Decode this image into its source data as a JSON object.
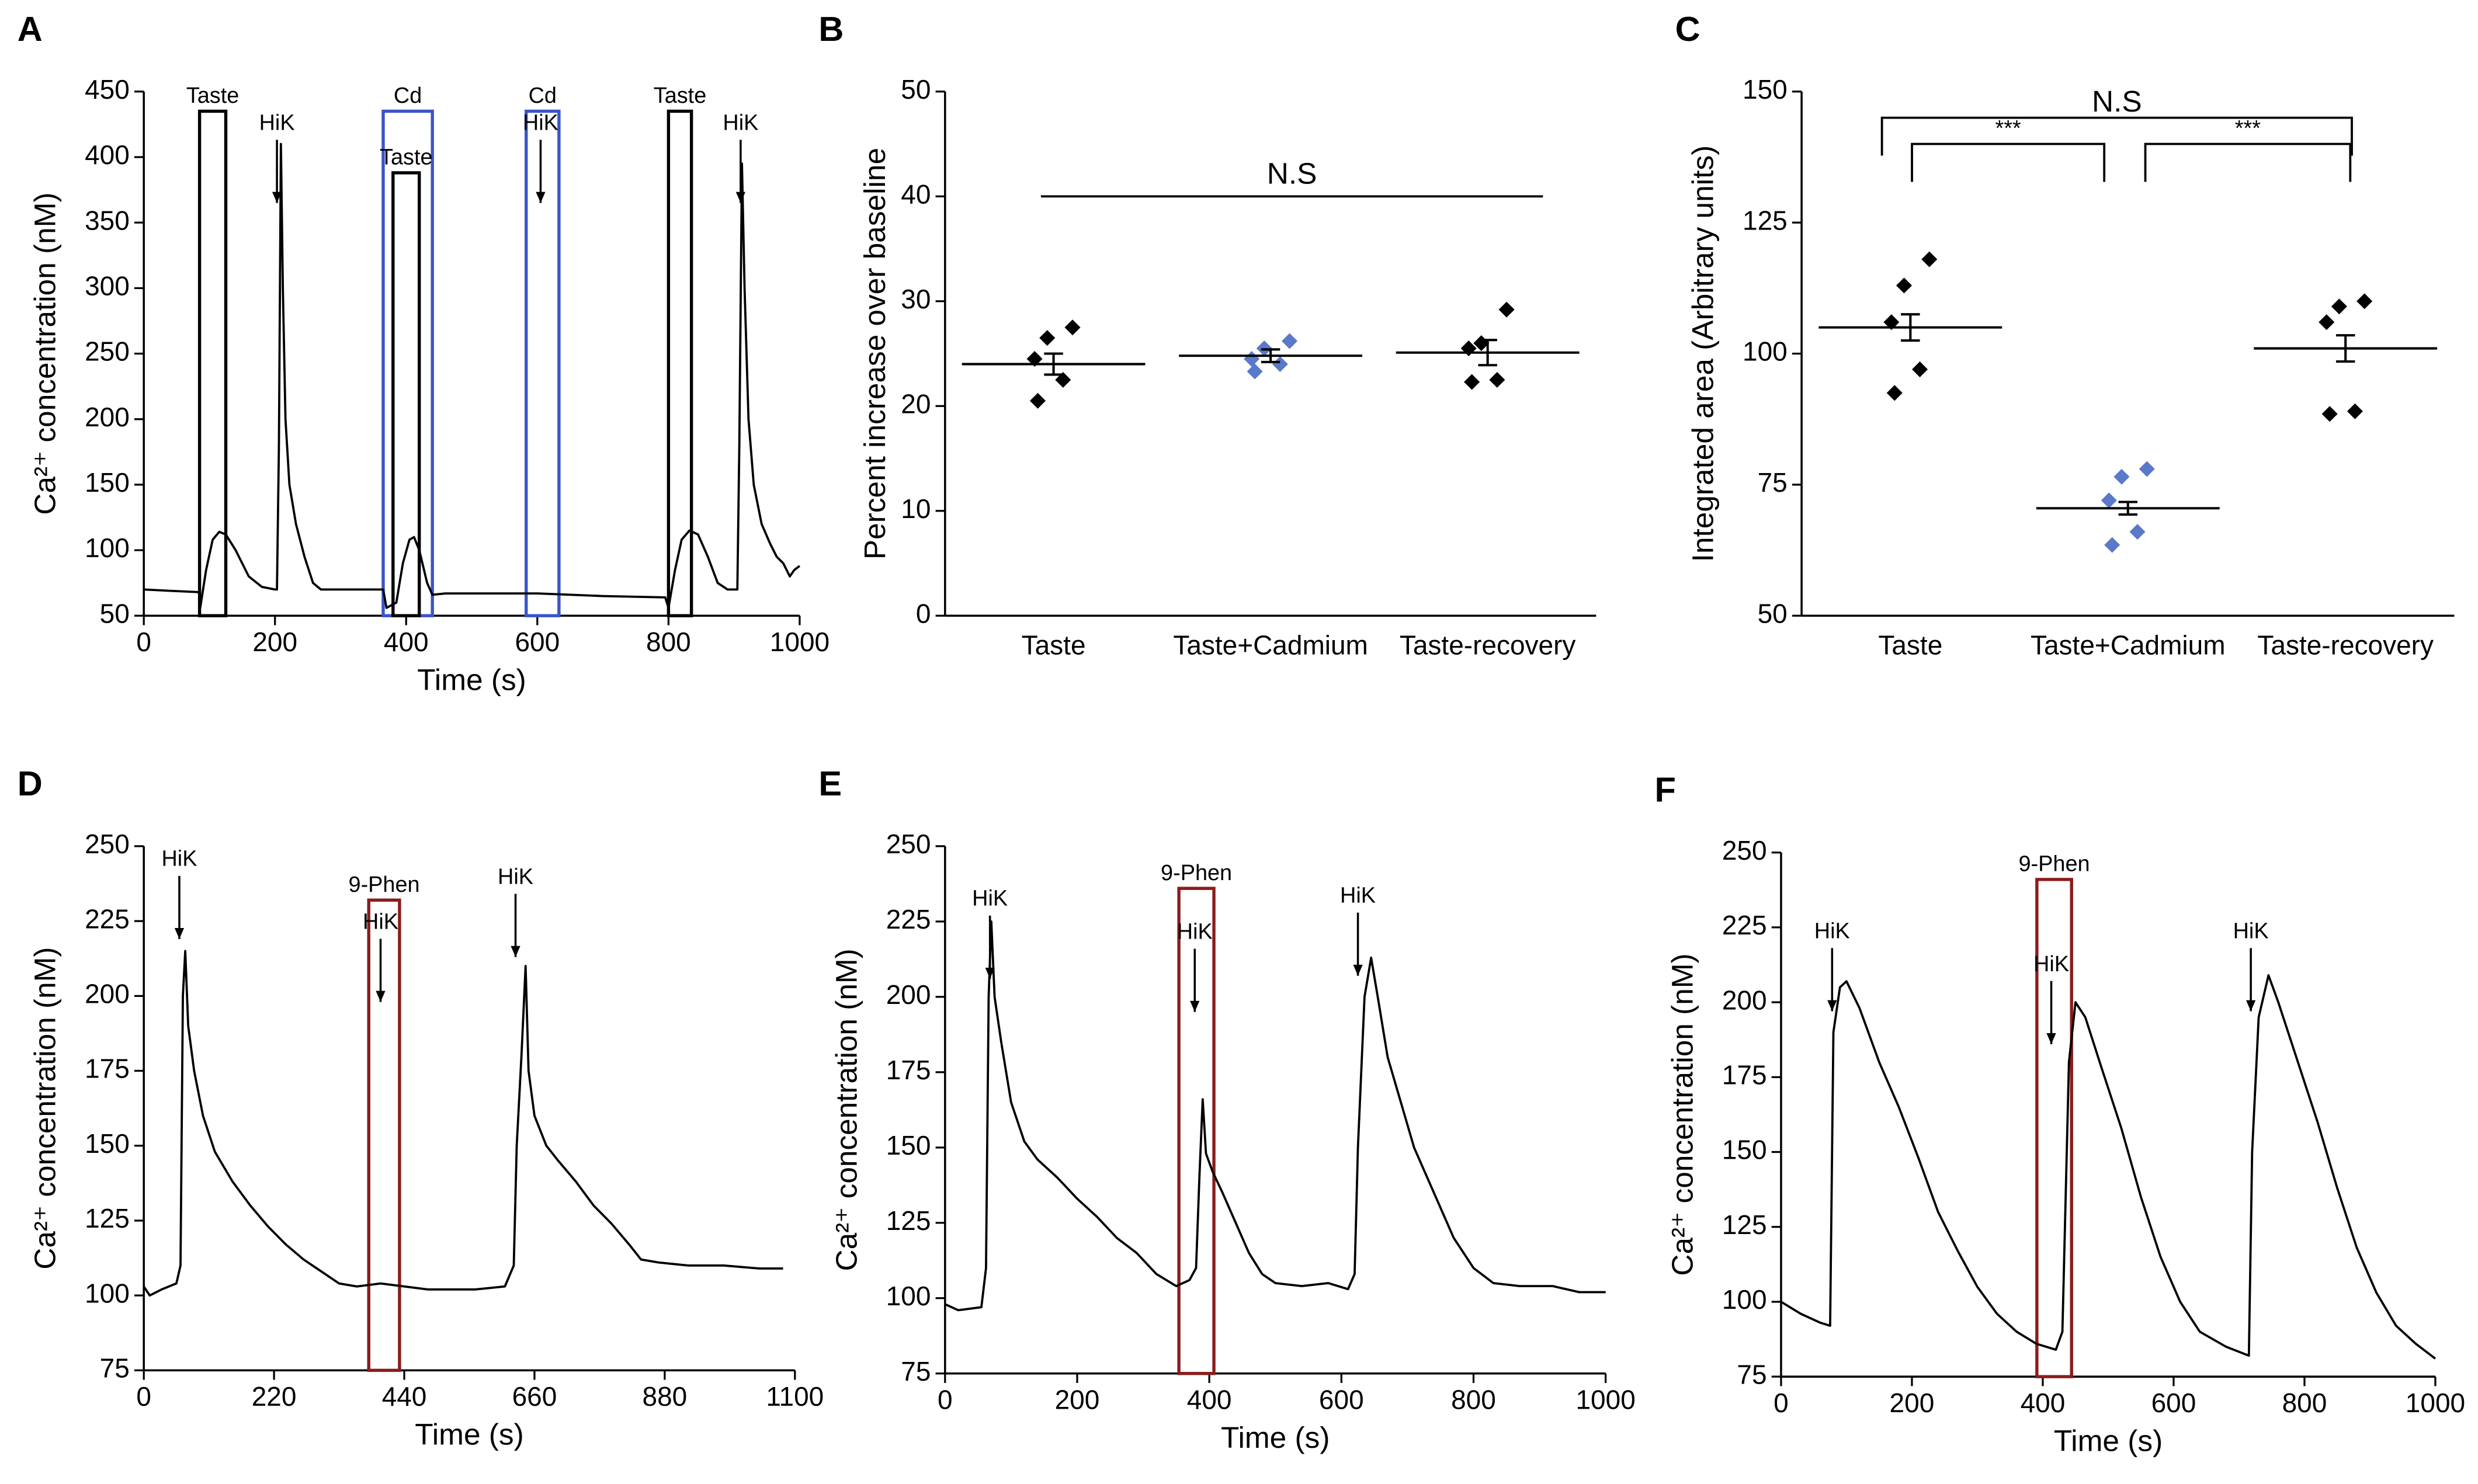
{
  "chart_data": [
    {
      "panel": "A",
      "type": "line",
      "xlabel": "Time (s)",
      "ylabel": "Ca²⁺ concentration (nM)",
      "xlim": [
        0,
        1000
      ],
      "xticks": [
        0,
        200,
        400,
        600,
        800,
        1000
      ],
      "ylim": [
        50,
        450
      ],
      "yticks": [
        50,
        100,
        150,
        200,
        250,
        300,
        350,
        400,
        450
      ],
      "color": "#000000",
      "x": [
        0,
        40,
        84,
        86,
        95,
        105,
        115,
        125,
        140,
        160,
        180,
        200,
        203,
        206,
        209,
        212,
        216,
        222,
        232,
        245,
        258,
        270,
        365,
        370,
        385,
        395,
        405,
        412,
        420,
        432,
        440,
        460,
        600,
        700,
        795,
        800,
        810,
        820,
        832,
        845,
        860,
        875,
        890,
        905,
        908,
        912,
        916,
        922,
        930,
        942,
        955,
        965,
        975,
        985,
        992,
        1000
      ],
      "values": [
        70,
        69,
        68,
        56,
        85,
        108,
        114,
        112,
        100,
        80,
        72,
        70,
        70,
        180,
        410,
        300,
        200,
        150,
        120,
        95,
        75,
        70,
        70,
        56,
        60,
        90,
        108,
        110,
        100,
        75,
        66,
        67,
        67,
        65,
        64,
        56,
        85,
        108,
        115,
        112,
        95,
        75,
        70,
        70,
        180,
        395,
        300,
        200,
        150,
        120,
        105,
        95,
        90,
        80,
        85,
        88
      ],
      "stimuli": [
        {
          "label": "Taste",
          "start": 85,
          "end": 125,
          "top": 435,
          "color": "#000000"
        },
        {
          "label": "Cd",
          "start": 365,
          "end": 440,
          "top": 435,
          "color": "#3b55c8"
        },
        {
          "label": "Taste",
          "start": 380,
          "end": 420,
          "top": 388,
          "color": "#000000"
        },
        {
          "label": "Cd",
          "start": 583,
          "end": 633,
          "top": 435,
          "color": "#3b55c8"
        },
        {
          "label": "Taste",
          "start": 800,
          "end": 835,
          "top": 435,
          "color": "#000000"
        }
      ],
      "markers": [
        {
          "label": "HiK",
          "x": 203,
          "y": 365
        },
        {
          "label": "HiK",
          "x": 605,
          "y": 365
        },
        {
          "label": "HiK",
          "x": 910,
          "y": 365
        }
      ]
    },
    {
      "panel": "B",
      "type": "scatter",
      "ylabel": "Percent increase over baseline",
      "ylim": [
        0,
        50
      ],
      "yticks": [
        0,
        10,
        20,
        30,
        40,
        50
      ],
      "categories": [
        "Taste",
        "Taste+Cadmium",
        "Taste-recovery"
      ],
      "colors": [
        "#000000",
        "#5b79c9",
        "#000000"
      ],
      "values": [
        [
          27.5,
          26.5,
          24.5,
          22.5,
          20.5
        ],
        [
          26.2,
          25.5,
          24.5,
          24.0,
          23.3
        ],
        [
          29.2,
          26,
          25.5,
          22.5,
          22.3
        ]
      ],
      "means": [
        24,
        24.8,
        25.1
      ],
      "sems": [
        1.0,
        0.6,
        1.2
      ],
      "significance": [
        {
          "from": 0,
          "to": 2,
          "y": 40,
          "label": "N.S"
        }
      ]
    },
    {
      "panel": "C",
      "type": "scatter",
      "ylabel": "Integrated area (Arbitrary units)",
      "ylim": [
        50,
        150
      ],
      "yticks": [
        50,
        75,
        100,
        125,
        150
      ],
      "categories": [
        "Taste",
        "Taste+Cadmium",
        "Taste-recovery"
      ],
      "colors": [
        "#000000",
        "#5b79c9",
        "#000000"
      ],
      "values": [
        [
          118,
          113,
          106,
          97,
          92.5
        ],
        [
          78,
          76.5,
          72,
          66,
          63.5
        ],
        [
          110,
          109,
          106,
          89,
          88.5
        ]
      ],
      "means": [
        105,
        70.5,
        101
      ],
      "sems": [
        2.5,
        1.2,
        2.5
      ],
      "brackets": [
        {
          "from": 0,
          "to": 2,
          "y": 145,
          "label": "N.S"
        },
        {
          "from": 0,
          "to": 1,
          "y": 140,
          "label": "***"
        },
        {
          "from": 1,
          "to": 2,
          "y": 140,
          "label": "***"
        }
      ]
    },
    {
      "panel": "D",
      "type": "line",
      "xlabel": "Time (s)",
      "ylabel": "Ca²⁺ concentration (nM)",
      "xlim": [
        0,
        1100
      ],
      "xticks": [
        0,
        220,
        440,
        660,
        880,
        1100
      ],
      "ylim": [
        75,
        250
      ],
      "yticks": [
        75,
        100,
        125,
        150,
        175,
        200,
        225,
        250
      ],
      "color": "#000000",
      "x": [
        0,
        10,
        30,
        55,
        62,
        66,
        70,
        75,
        85,
        100,
        120,
        150,
        180,
        210,
        240,
        270,
        300,
        330,
        360,
        400,
        440,
        480,
        520,
        560,
        610,
        625,
        630,
        638,
        645,
        650,
        660,
        680,
        700,
        730,
        760,
        790,
        820,
        840,
        870,
        920,
        980,
        1040,
        1080
      ],
      "values": [
        103,
        100,
        102,
        104,
        110,
        200,
        215,
        190,
        175,
        160,
        148,
        138,
        130,
        123,
        117,
        112,
        108,
        104,
        103,
        104,
        103,
        102,
        102,
        102,
        103,
        110,
        150,
        180,
        210,
        175,
        160,
        150,
        145,
        138,
        130,
        124,
        117,
        112,
        111,
        110,
        110,
        109,
        109
      ],
      "stimuli": [
        {
          "label": "9-Phen",
          "start": 380,
          "end": 432,
          "top": 232,
          "color": "#8b1c1c"
        }
      ],
      "markers": [
        {
          "label": "HiK",
          "x": 60,
          "y": 219
        },
        {
          "label": "HiK",
          "x": 400,
          "y": 198
        },
        {
          "label": "HiK",
          "x": 628,
          "y": 213
        }
      ]
    },
    {
      "panel": "E",
      "type": "line",
      "xlabel": "Time (s)",
      "ylabel": "Ca²⁺ concentration (nM)",
      "xlim": [
        0,
        1000
      ],
      "xticks": [
        0,
        200,
        400,
        600,
        800,
        1000
      ],
      "ylim": [
        75,
        250
      ],
      "yticks": [
        75,
        100,
        125,
        150,
        175,
        200,
        225,
        250
      ],
      "color": "#000000",
      "x": [
        0,
        20,
        55,
        62,
        66,
        70,
        75,
        85,
        100,
        120,
        140,
        170,
        200,
        230,
        260,
        290,
        320,
        350,
        370,
        380,
        385,
        390,
        395,
        405,
        420,
        440,
        460,
        480,
        500,
        540,
        580,
        610,
        620,
        625,
        635,
        645,
        655,
        670,
        690,
        710,
        740,
        770,
        800,
        830,
        870,
        920,
        960,
        1000
      ],
      "values": [
        98,
        96,
        97,
        110,
        200,
        225,
        200,
        185,
        165,
        152,
        146,
        140,
        133,
        127,
        120,
        115,
        108,
        104,
        106,
        110,
        140,
        166,
        148,
        142,
        135,
        125,
        115,
        108,
        105,
        104,
        105,
        103,
        108,
        150,
        200,
        213,
        200,
        180,
        165,
        150,
        135,
        120,
        110,
        105,
        104,
        104,
        102,
        102
      ],
      "stimuli": [
        {
          "label": "9-Phen",
          "start": 354,
          "end": 407,
          "top": 236,
          "color": "#8b1c1c"
        }
      ],
      "markers": [
        {
          "label": "HiK",
          "x": 68,
          "y": 206
        },
        {
          "label": "HiK",
          "x": 378,
          "y": 195
        },
        {
          "label": "HiK",
          "x": 625,
          "y": 207
        }
      ]
    },
    {
      "panel": "F",
      "type": "line",
      "xlabel": "Time (s)",
      "ylabel": "Ca²⁺ concentration (nM)",
      "xlim": [
        0,
        1000
      ],
      "xticks": [
        0,
        200,
        400,
        600,
        800,
        1000
      ],
      "ylim": [
        75,
        250
      ],
      "yticks": [
        75,
        100,
        125,
        150,
        175,
        200,
        225,
        250
      ],
      "color": "#000000",
      "x": [
        0,
        30,
        60,
        75,
        80,
        90,
        100,
        120,
        150,
        180,
        210,
        240,
        270,
        300,
        330,
        360,
        390,
        420,
        430,
        440,
        450,
        465,
        490,
        520,
        550,
        580,
        610,
        640,
        680,
        715,
        720,
        730,
        745,
        760,
        790,
        820,
        850,
        880,
        910,
        940,
        970,
        1000
      ],
      "values": [
        100,
        96,
        93,
        92,
        190,
        205,
        207,
        198,
        180,
        165,
        148,
        130,
        117,
        105,
        96,
        90,
        86,
        84,
        90,
        180,
        200,
        195,
        178,
        158,
        135,
        115,
        100,
        90,
        85,
        82,
        150,
        195,
        209,
        200,
        180,
        160,
        138,
        118,
        103,
        92,
        86,
        81
      ],
      "stimuli": [
        {
          "label": "9-Phen",
          "start": 391,
          "end": 444,
          "top": 241,
          "color": "#8b1c1c"
        }
      ],
      "markers": [
        {
          "label": "HiK",
          "x": 78,
          "y": 197
        },
        {
          "label": "HiK",
          "x": 413,
          "y": 186
        },
        {
          "label": "HiK",
          "x": 718,
          "y": 197
        }
      ]
    }
  ]
}
